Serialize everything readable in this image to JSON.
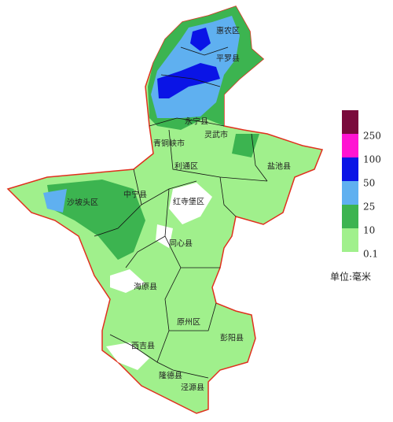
{
  "map": {
    "labels": [
      "惠农区",
      "平罗县",
      "永宁县",
      "青铜峡市",
      "灵武市",
      "利通区",
      "盐池县",
      "沙坡头区",
      "中宁县",
      "红寺堡区",
      "同心县",
      "海原县",
      "原州区",
      "彭阳县",
      "西吉县",
      "隆德县",
      "泾源县"
    ]
  },
  "legend": {
    "colors": [
      "#7a0a3c",
      "#ff14d2",
      "#0a14e6",
      "#5fb0f0",
      "#3cb450",
      "#a0f08c"
    ],
    "labels": [
      250,
      100,
      50,
      25,
      10,
      0.1
    ]
  },
  "unit": "单位:毫米"
}
